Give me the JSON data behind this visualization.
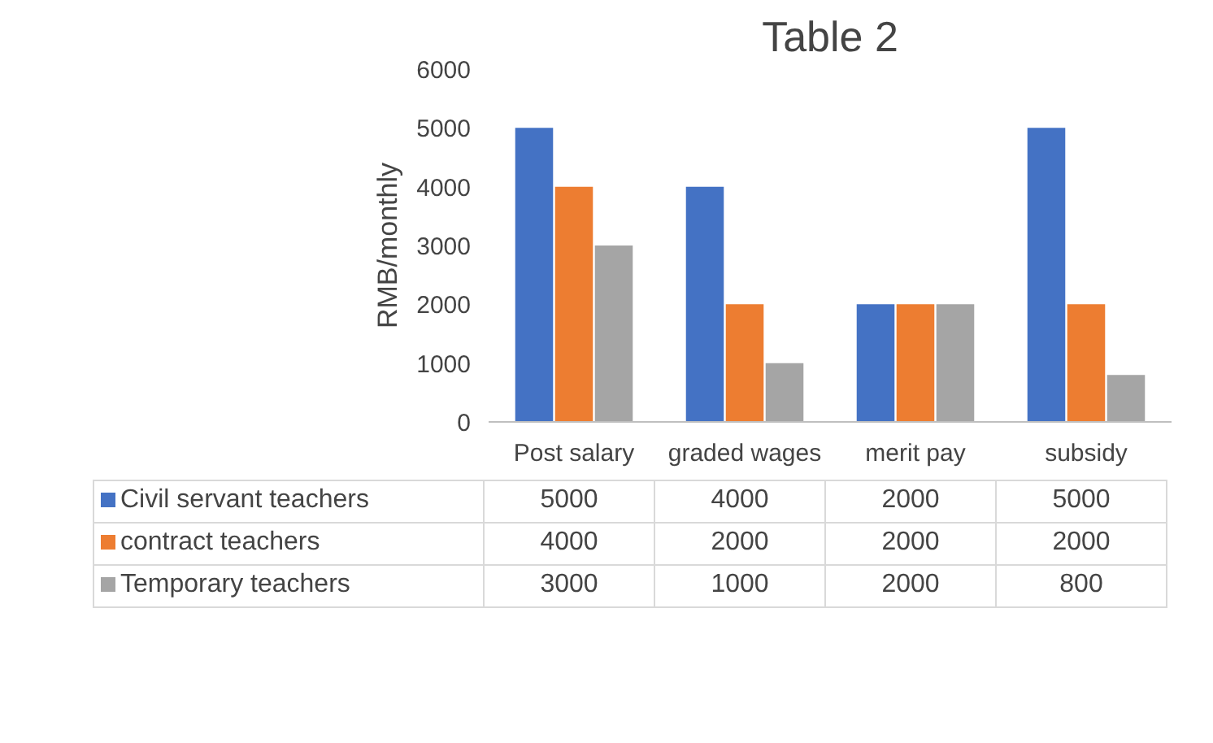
{
  "chart_data": {
    "type": "bar",
    "title": "Table 2",
    "ylabel": "RMB/monthly",
    "categories": [
      "Post salary",
      "graded wages",
      "merit pay",
      "subsidy"
    ],
    "series": [
      {
        "name": "Civil servant teachers",
        "color": "#4472c4",
        "values": [
          5000,
          4000,
          2000,
          5000
        ]
      },
      {
        "name": "contract teachers",
        "color": "#ed7d31",
        "values": [
          4000,
          2000,
          2000,
          2000
        ]
      },
      {
        "name": "Temporary teachers",
        "color": "#a5a5a5",
        "values": [
          3000,
          1000,
          2000,
          800
        ]
      }
    ],
    "ylim": [
      0,
      6000
    ],
    "yticks": [
      0,
      1000,
      2000,
      3000,
      4000,
      5000,
      6000
    ],
    "grid": false,
    "legend": "bottom",
    "data_labels": true
  }
}
